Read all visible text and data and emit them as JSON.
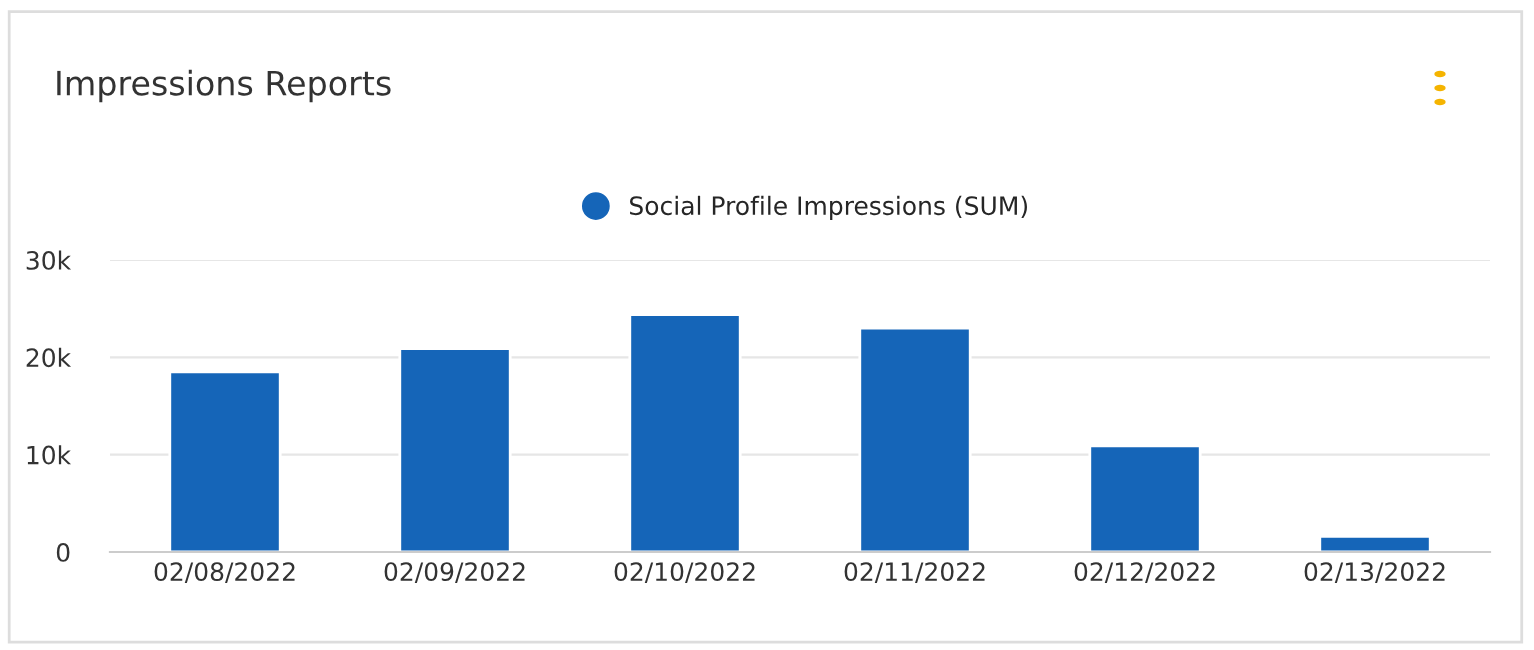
{
  "chart_data": {
    "type": "bar",
    "title": "Impressions Reports",
    "categories": [
      "02/08/2022",
      "02/09/2022",
      "02/10/2022",
      "02/11/2022",
      "02/12/2022",
      "02/13/2022"
    ],
    "series": [
      {
        "name": "Social Profile Impressions (SUM)",
        "color": "#1565b8",
        "values": [
          18500,
          20900,
          24400,
          23000,
          10900,
          1600
        ]
      }
    ],
    "ylim": [
      0,
      30000
    ],
    "yticks": [
      {
        "value": 0,
        "label": "0"
      },
      {
        "value": 10000,
        "label": "10k"
      },
      {
        "value": 20000,
        "label": "20k"
      },
      {
        "value": 30000,
        "label": "30k"
      }
    ],
    "grid": "y",
    "legend": "top",
    "marker": "circle"
  }
}
